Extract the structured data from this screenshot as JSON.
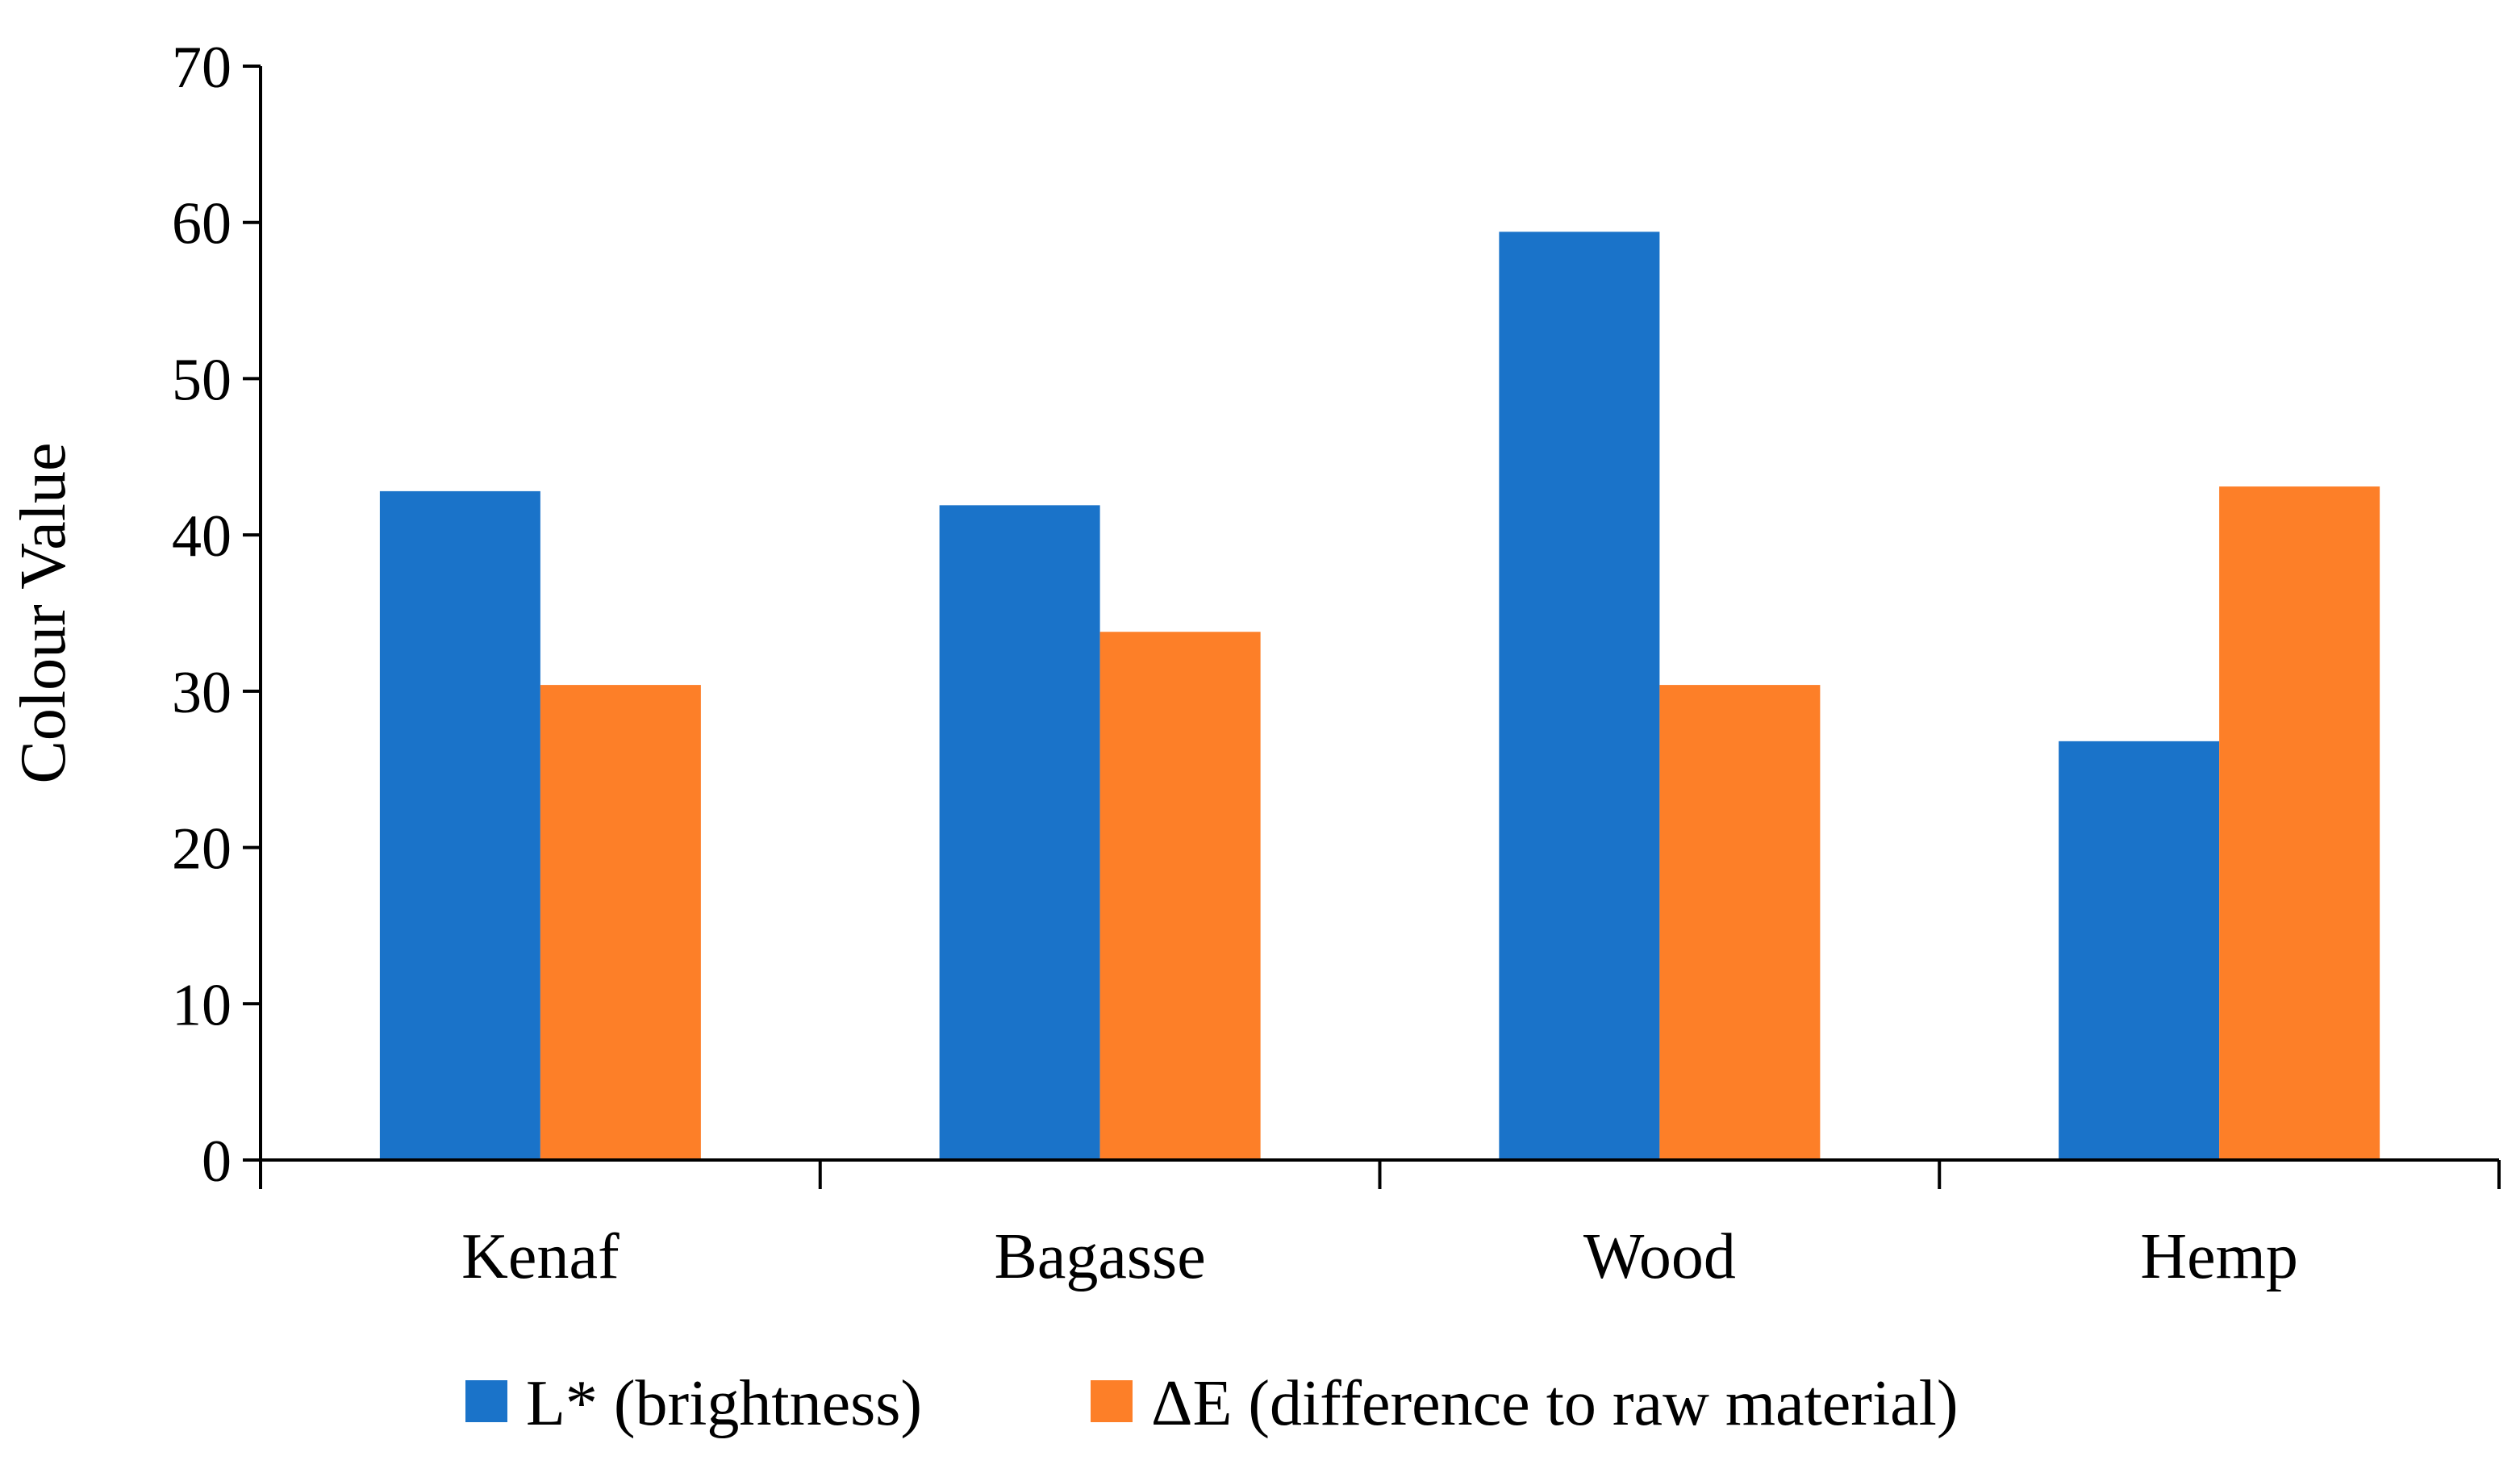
{
  "chart_data": {
    "type": "bar",
    "title": "",
    "xlabel": "",
    "ylabel": "Colour Value",
    "ylim": [
      0,
      70
    ],
    "yticks": [
      0,
      10,
      20,
      30,
      40,
      50,
      60,
      70
    ],
    "grid": false,
    "legend_position": "bottom",
    "categories": [
      "Kenaf",
      "Bagasse",
      "Wood",
      "Hemp"
    ],
    "series": [
      {
        "name": "L* (brightness)",
        "color": "#1a73c9",
        "values": [
          42.8,
          41.9,
          59.4,
          26.8
        ]
      },
      {
        "name": "ΔE (difference to raw material)",
        "color": "#fd7f28",
        "values": [
          30.4,
          33.8,
          30.4,
          43.1
        ]
      }
    ]
  }
}
